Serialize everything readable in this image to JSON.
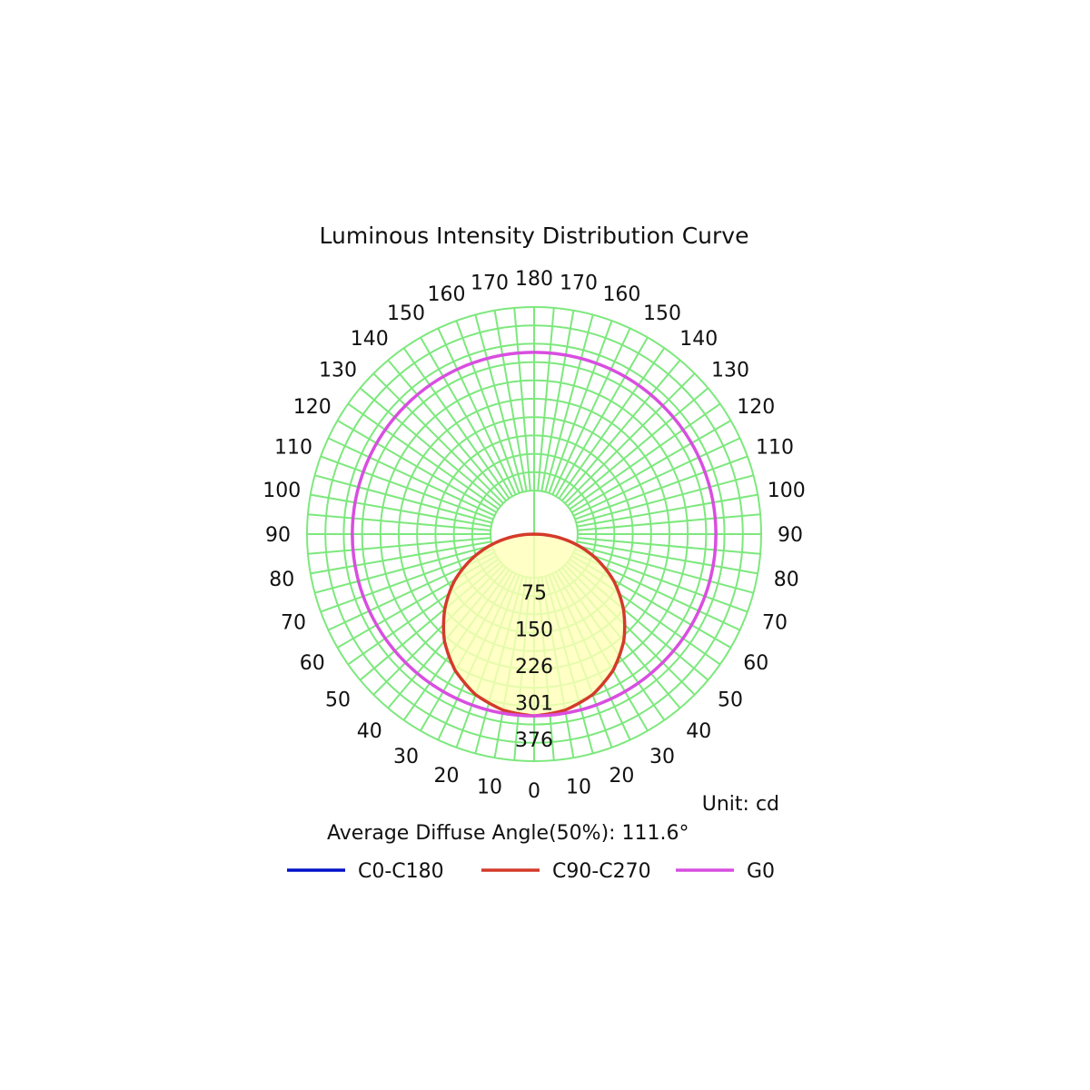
{
  "chart_data": {
    "type": "polar",
    "title": "Luminous Intensity Distribution Curve",
    "unit_label": "Unit: cd",
    "diffuse_angle_label": "Average Diffuse Angle(50%): 111.6°",
    "radial_ticks": [
      "75",
      "150",
      "226",
      "301",
      "376"
    ],
    "radial_max": 376,
    "angle_step_deg": 5,
    "angle_labels": [
      {
        "deg": 0,
        "text": "0"
      },
      {
        "deg": 10,
        "text": "10"
      },
      {
        "deg": 20,
        "text": "20"
      },
      {
        "deg": 30,
        "text": "30"
      },
      {
        "deg": 40,
        "text": "40"
      },
      {
        "deg": 50,
        "text": "50"
      },
      {
        "deg": 60,
        "text": "60"
      },
      {
        "deg": 70,
        "text": "70"
      },
      {
        "deg": 80,
        "text": "80"
      },
      {
        "deg": 90,
        "text": "90"
      },
      {
        "deg": 100,
        "text": "100"
      },
      {
        "deg": 110,
        "text": "110"
      },
      {
        "deg": 120,
        "text": "120"
      },
      {
        "deg": 130,
        "text": "130"
      },
      {
        "deg": 140,
        "text": "140"
      },
      {
        "deg": 150,
        "text": "150"
      },
      {
        "deg": 160,
        "text": "160"
      },
      {
        "deg": 170,
        "text": "170"
      },
      {
        "deg": 180,
        "text": "180"
      }
    ],
    "series": [
      {
        "name": "C0-C180",
        "color": "#0010c8",
        "shape": "intensity_vs_angle",
        "angles": [],
        "values": []
      },
      {
        "name": "C90-C270",
        "color": "#d43a2a",
        "fill": "#ffffb8",
        "shape": "intensity_vs_angle",
        "angles": [
          0,
          10,
          20,
          30,
          40,
          50,
          60,
          70,
          80,
          90
        ],
        "values": [
          301,
          296,
          283,
          261,
          231,
          193,
          151,
          103,
          52,
          0
        ]
      },
      {
        "name": "G0",
        "color": "#d84ee0",
        "shape": "constant_circle",
        "value": 301
      }
    ],
    "grid_color": "#7de87d"
  }
}
